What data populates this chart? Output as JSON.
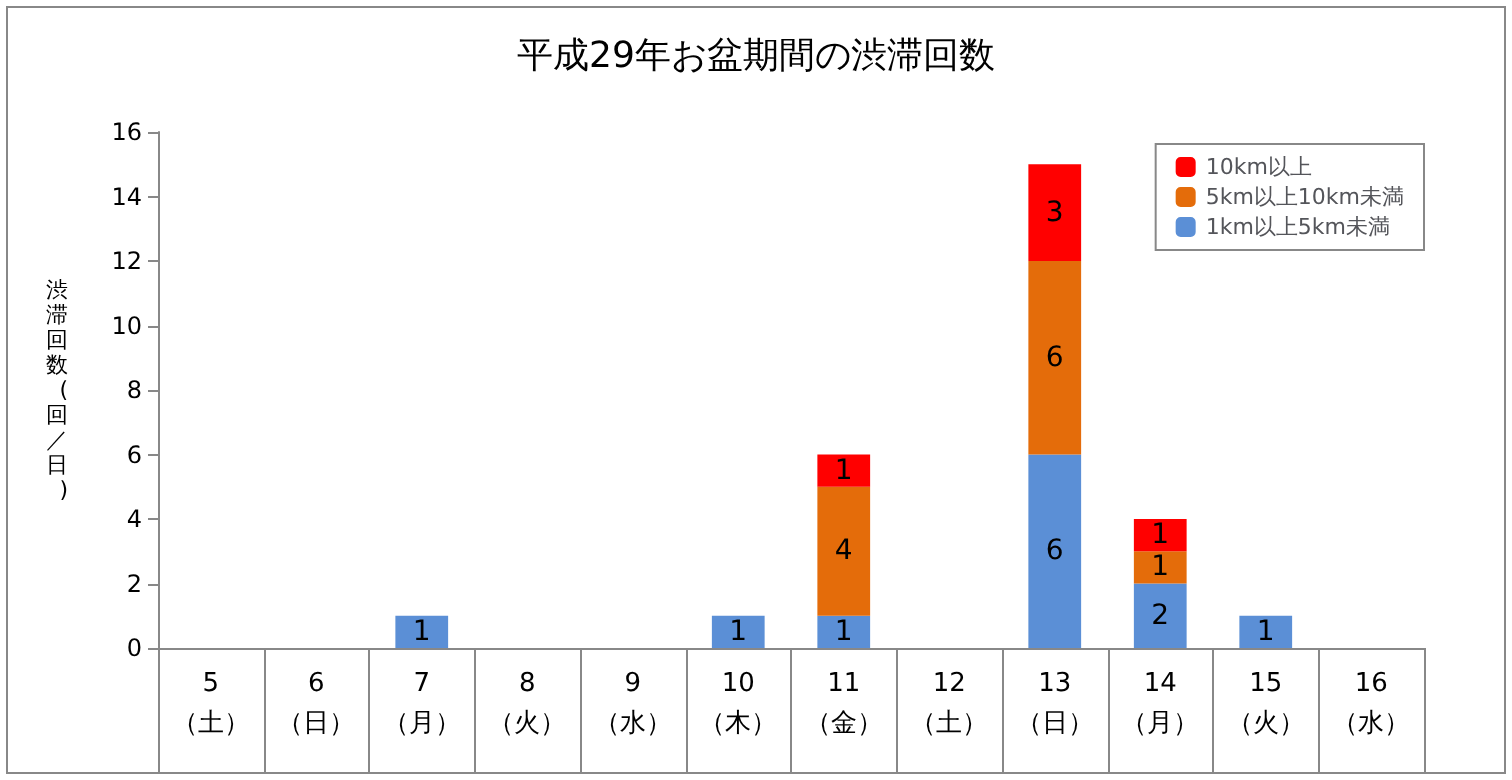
{
  "chart_data": {
    "type": "bar",
    "title": "平成29年お盆期間の渋滞回数",
    "ylabel": "渋滞回数(回／日)",
    "categories": [
      "5\n（土）",
      "6\n（日）",
      "7\n（月）",
      "8\n（火）",
      "9\n（水）",
      "10\n（木）",
      "11\n（金）",
      "12\n（土）",
      "13\n（日）",
      "14\n（月）",
      "15\n（火）",
      "16\n（水）"
    ],
    "series": [
      {
        "name": "1km以上5km未満",
        "color": "#5b8fd6",
        "values": [
          null,
          null,
          1,
          null,
          null,
          1,
          1,
          null,
          6,
          2,
          1,
          null
        ]
      },
      {
        "name": "5km以上10km未満",
        "color": "#e46c0a",
        "values": [
          null,
          null,
          null,
          null,
          null,
          null,
          4,
          null,
          6,
          1,
          null,
          null
        ]
      },
      {
        "name": "10km以上",
        "color": "#ff0000",
        "values": [
          null,
          null,
          null,
          null,
          null,
          null,
          1,
          null,
          3,
          1,
          null,
          null
        ]
      }
    ],
    "stacked": true,
    "data_labels": true,
    "ylim": [
      0,
      16
    ],
    "yticks": [
      0,
      2,
      4,
      6,
      8,
      10,
      12,
      14,
      16
    ],
    "grid": false,
    "legend": "top right"
  }
}
